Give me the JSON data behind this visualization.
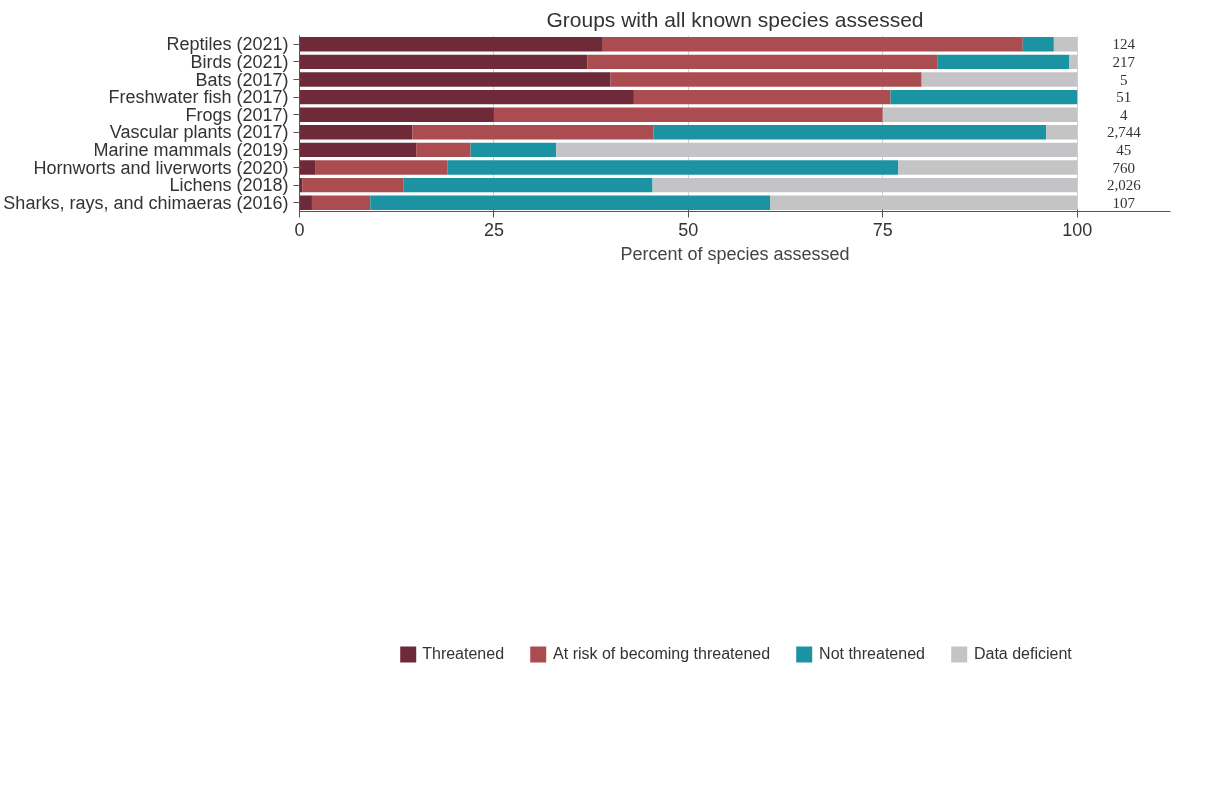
{
  "chart_data": {
    "type": "bar",
    "orientation": "horizontal",
    "stacked": true,
    "title": "Groups with all known species assessed",
    "xlabel": "Percent of species assessed",
    "categories": [
      "Reptiles (2021)",
      "Birds (2021)",
      "Bats (2017)",
      "Freshwater fish (2017)",
      "Frogs (2017)",
      "Vascular plants (2017)",
      "Marine mammals (2019)",
      "Hornworts and liverworts (2020)",
      "Lichens (2018)",
      "Sharks, rays, and chimaeras (2016)"
    ],
    "series": [
      {
        "name": "Threatened",
        "color": "#6e2a38",
        "values": [
          39,
          37,
          40,
          43,
          25,
          14.5,
          15,
          2,
          0.4,
          1.6
        ]
      },
      {
        "name": "At risk of becoming threatened",
        "color": "#ab4c51",
        "values": [
          54,
          45,
          40,
          33,
          50,
          31,
          7,
          17,
          13,
          7.5
        ]
      },
      {
        "name": "Not threatened",
        "color": "#1b93a2",
        "values": [
          4,
          17,
          0,
          24,
          0,
          50.5,
          11,
          58,
          32,
          51.4
        ]
      },
      {
        "name": "Data deficient",
        "color": "#c4c4c6",
        "values": [
          3,
          1,
          20,
          0,
          25,
          4,
          67,
          23,
          54.6,
          39.5
        ]
      }
    ],
    "annotations": [
      "124",
      "217",
      "5",
      "51",
      "4",
      "2,744",
      "45",
      "760",
      "2,026",
      "107"
    ],
    "xlim": [
      0,
      112
    ],
    "xticks": [
      0,
      25,
      50,
      75,
      100
    ],
    "grid": "x",
    "legend": "bottom"
  }
}
